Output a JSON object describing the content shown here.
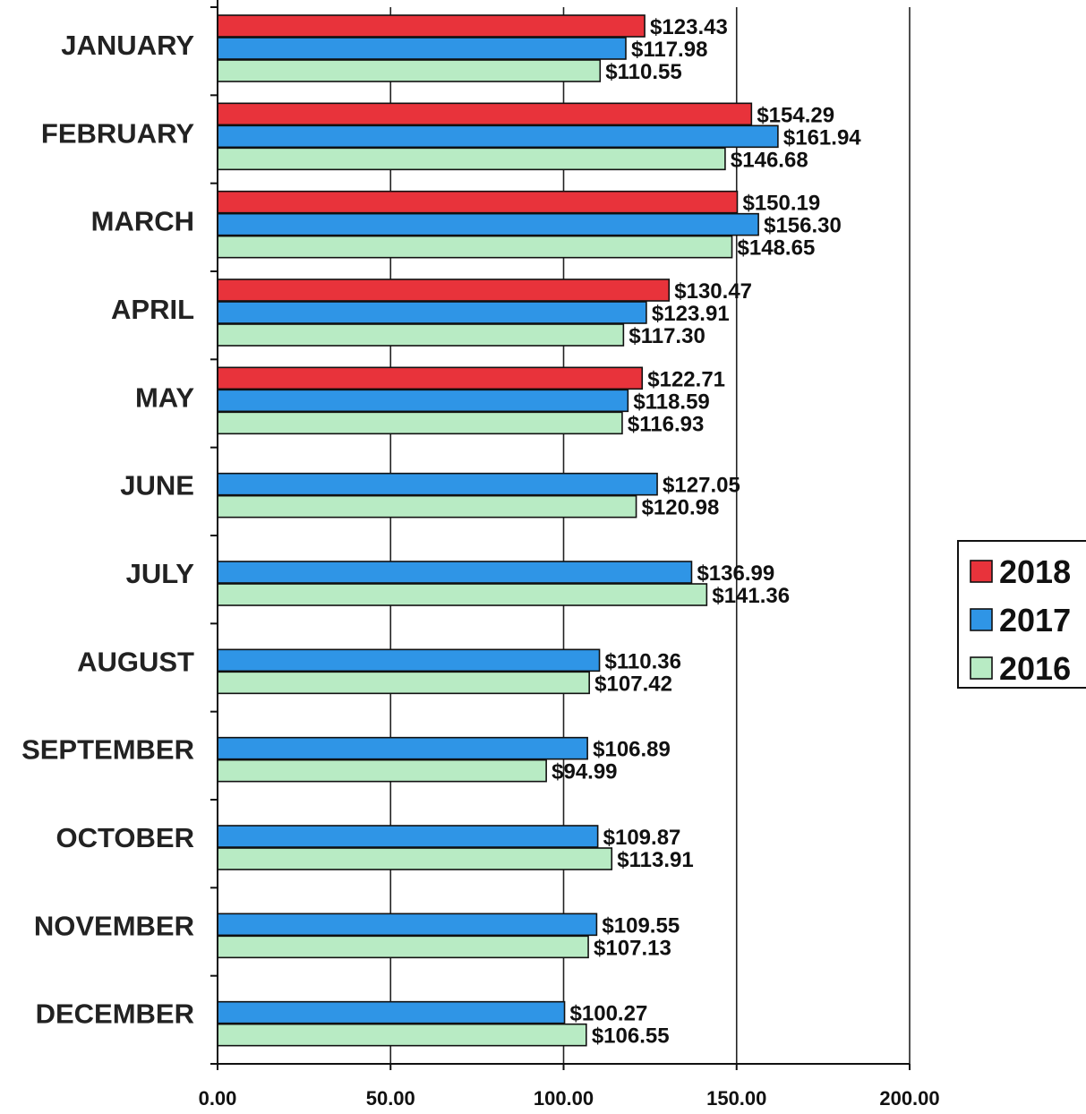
{
  "chart_data": {
    "type": "bar",
    "orientation": "horizontal",
    "title": "",
    "xlabel": "",
    "ylabel": "",
    "xlim": [
      0,
      200
    ],
    "x_ticks": [
      0,
      50,
      100,
      150,
      200
    ],
    "x_tick_labels": [
      "0.00",
      "50.00",
      "100.00",
      "150.00",
      "200.00"
    ],
    "grid": true,
    "legend_position": "right",
    "value_prefix": "$",
    "categories": [
      "JANUARY",
      "FEBRUARY",
      "MARCH",
      "APRIL",
      "MAY",
      "JUNE",
      "JULY",
      "AUGUST",
      "SEPTEMBER",
      "OCTOBER",
      "NOVEMBER",
      "DECEMBER"
    ],
    "series": [
      {
        "name": "2018",
        "color": "#e8333b",
        "values": [
          123.43,
          154.29,
          150.19,
          130.47,
          122.71,
          null,
          null,
          null,
          null,
          null,
          null,
          null
        ],
        "labels": [
          "$123.43",
          "$154.29",
          "$150.19",
          "$130.47",
          "$122.71",
          null,
          null,
          null,
          null,
          null,
          null,
          null
        ]
      },
      {
        "name": "2017",
        "color": "#2f95e6",
        "values": [
          117.98,
          161.94,
          156.3,
          123.91,
          118.59,
          127.05,
          136.99,
          110.36,
          106.89,
          109.87,
          109.55,
          100.27
        ],
        "labels": [
          "$117.98",
          "$161.94",
          "$156.30",
          "$123.91",
          "$118.59",
          "$127.05",
          "$136.99",
          "$110.36",
          "$106.89",
          "$109.87",
          "$109.55",
          "$100.27"
        ]
      },
      {
        "name": "2016",
        "color": "#b8ebc4",
        "values": [
          110.55,
          146.68,
          148.65,
          117.3,
          116.93,
          120.98,
          141.36,
          107.42,
          94.99,
          113.91,
          107.13,
          106.55
        ],
        "labels": [
          "$110.55",
          "$146.68",
          "$148.65",
          "$117.30",
          "$116.93",
          "$120.98",
          "$141.36",
          "$107.42",
          "$94.99",
          "$113.91",
          "$107.13",
          "$106.55"
        ]
      }
    ]
  }
}
